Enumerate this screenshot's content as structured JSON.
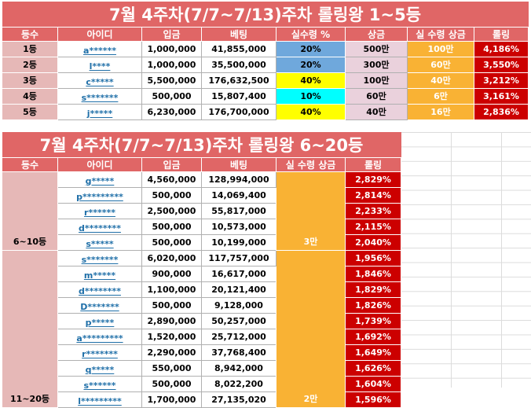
{
  "table1": {
    "title": "7월 4주차(7/7~7/13)주차 롤링왕 1~5등",
    "headers": [
      "등수",
      "아이디",
      "입금",
      "베팅",
      "실수령 %",
      "상금",
      "실 수령 상금",
      "롤링"
    ],
    "rows": [
      {
        "rank": "1등",
        "id": "a******",
        "deposit": "1,000,000",
        "bet": "41,855,000",
        "pct": "20%",
        "prize": "500만",
        "actual": "100만",
        "rolling": "4,186%"
      },
      {
        "rank": "2등",
        "id": "l****",
        "deposit": "1,000,000",
        "bet": "35,500,000",
        "pct": "20%",
        "prize": "300만",
        "actual": "60만",
        "rolling": "3,550%"
      },
      {
        "rank": "3등",
        "id": "c*****",
        "deposit": "5,500,000",
        "bet": "176,632,500",
        "pct": "40%",
        "prize": "100만",
        "actual": "40만",
        "rolling": "3,212%"
      },
      {
        "rank": "4등",
        "id": "s*******",
        "deposit": "500,000",
        "bet": "15,807,400",
        "pct": "10%",
        "prize": "60만",
        "actual": "6만",
        "rolling": "3,161%"
      },
      {
        "rank": "5등",
        "id": "j*****",
        "deposit": "6,230,000",
        "bet": "176,700,000",
        "pct": "40%",
        "prize": "40만",
        "actual": "16만",
        "rolling": "2,836%"
      }
    ]
  },
  "table2": {
    "title": "7월 4주차(7/7~7/13)주차 롤링왕 6~20등",
    "headers": [
      "등수",
      "아이디",
      "입금",
      "베팅",
      "실 수령 상금",
      "롤링"
    ],
    "group1": {
      "rank": "6~10등",
      "actual": "3만"
    },
    "group2": {
      "rank": "11~20등",
      "actual": "2만"
    },
    "rows": [
      {
        "id": "g*****",
        "deposit": "4,560,000",
        "bet": "128,994,000",
        "rolling": "2,829%"
      },
      {
        "id": "p*********",
        "deposit": "500,000",
        "bet": "14,069,400",
        "rolling": "2,814%"
      },
      {
        "id": "r******",
        "deposit": "2,500,000",
        "bet": "55,817,000",
        "rolling": "2,233%"
      },
      {
        "id": "d********",
        "deposit": "500,000",
        "bet": "10,573,000",
        "rolling": "2,115%"
      },
      {
        "id": "s*****",
        "deposit": "500,000",
        "bet": "10,199,000",
        "rolling": "2,040%"
      },
      {
        "id": "s*******",
        "deposit": "6,020,000",
        "bet": "117,757,000",
        "rolling": "1,956%"
      },
      {
        "id": "m*****",
        "deposit": "900,000",
        "bet": "16,617,000",
        "rolling": "1,846%"
      },
      {
        "id": "d********",
        "deposit": "1,100,000",
        "bet": "20,121,400",
        "rolling": "1,829%"
      },
      {
        "id": "D*******",
        "deposit": "500,000",
        "bet": "9,128,000",
        "rolling": "1,826%"
      },
      {
        "id": "p*****",
        "deposit": "2,890,000",
        "bet": "50,257,000",
        "rolling": "1,739%"
      },
      {
        "id": "a*********",
        "deposit": "1,520,000",
        "bet": "25,712,000",
        "rolling": "1,692%"
      },
      {
        "id": "r*******",
        "deposit": "2,290,000",
        "bet": "37,768,400",
        "rolling": "1,649%"
      },
      {
        "id": "q*****",
        "deposit": "550,000",
        "bet": "8,942,000",
        "rolling": "1,626%"
      },
      {
        "id": "s******",
        "deposit": "500,000",
        "bet": "8,022,200",
        "rolling": "1,604%"
      },
      {
        "id": "l*********",
        "deposit": "1,700,000",
        "bet": "27,135,020",
        "rolling": "1,596%"
      }
    ]
  },
  "colors": {
    "header_red": "#e06666",
    "rank_pink": "#e6b8b7",
    "pct_blue": "#6fa8dc",
    "pct_yellow": "#ffff00",
    "pct_cyan": "#00ffff",
    "prize_pink": "#ead1dc",
    "actual_orange": "#f9b234",
    "rolling_red": "#cc0000",
    "id_blue": "#1f6fa8"
  }
}
